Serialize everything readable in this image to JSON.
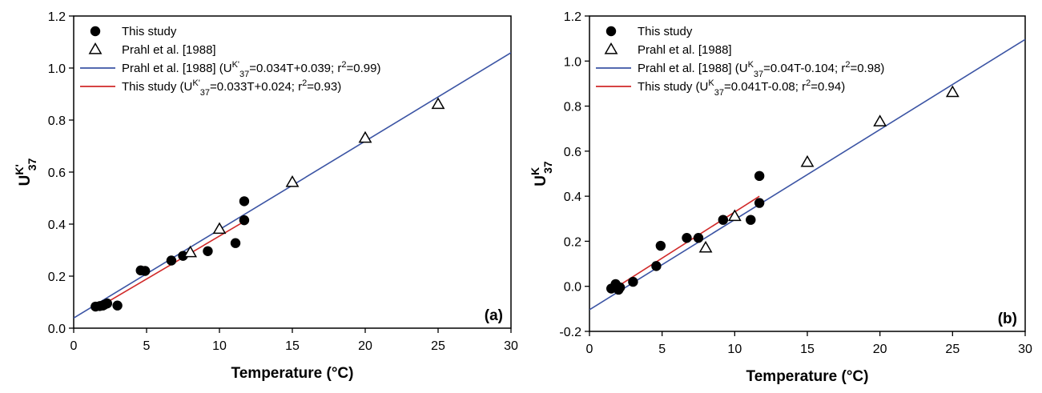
{
  "chart_data": [
    {
      "type": "scatter",
      "panel_label": "(a)",
      "xlabel": "Temperature (°C)",
      "ylabel": {
        "base": "U",
        "sup": "K'",
        "sub": "37"
      },
      "xlim": [
        0,
        30
      ],
      "ylim": [
        0.0,
        1.2
      ],
      "xticks": [
        "0",
        "5",
        "10",
        "15",
        "20",
        "25",
        "30"
      ],
      "yticks": [
        "0.0",
        "0.2",
        "0.4",
        "0.6",
        "0.8",
        "1.0",
        "1.2"
      ],
      "grid": false,
      "legend_position": "top-left",
      "series": [
        {
          "name": "This study",
          "marker": "filled-circle",
          "color": "#000000",
          "x": [
            1.5,
            1.8,
            2.0,
            2.1,
            2.3,
            3.0,
            4.6,
            4.9,
            6.7,
            7.5,
            9.2,
            11.1,
            11.7,
            11.7
          ],
          "y": [
            0.083,
            0.085,
            0.087,
            0.09,
            0.095,
            0.087,
            0.222,
            0.22,
            0.26,
            0.278,
            0.296,
            0.327,
            0.488,
            0.415
          ]
        },
        {
          "name": "Prahl et al. [1988]",
          "marker": "open-triangle",
          "color": "#000000",
          "x": [
            8,
            10,
            15,
            20,
            25
          ],
          "y": [
            0.29,
            0.38,
            0.56,
            0.73,
            0.86
          ]
        },
        {
          "name": "Prahl et al. [1988] (U<sup>K'</sup><sub>37</sub>=0.034T+0.039; r<sup>2</sup>=0.99)",
          "type": "line",
          "color": "#3b54a4",
          "slope": 0.034,
          "intercept": 0.039,
          "x_range": [
            0,
            30
          ]
        },
        {
          "name": "This study (U<sup>K'</sup><sub>37</sub>=0.033T+0.024; r<sup>2</sup>=0.93)",
          "type": "line",
          "color": "#d12a2a",
          "slope": 0.033,
          "intercept": 0.024,
          "x_range": [
            1.5,
            11.7
          ]
        }
      ]
    },
    {
      "type": "scatter",
      "panel_label": "(b)",
      "xlabel": "Temperature (°C)",
      "ylabel": {
        "base": "U",
        "sup": "K",
        "sub": "37"
      },
      "xlim": [
        0,
        30
      ],
      "ylim": [
        -0.2,
        1.2
      ],
      "xticks": [
        "0",
        "5",
        "10",
        "15",
        "20",
        "25",
        "30"
      ],
      "yticks": [
        "-0.2",
        "0.0",
        "0.2",
        "0.4",
        "0.6",
        "0.8",
        "1.0",
        "1.2"
      ],
      "grid": false,
      "legend_position": "top-left",
      "series": [
        {
          "name": "This study",
          "marker": "filled-circle",
          "color": "#000000",
          "x": [
            1.5,
            1.8,
            2.0,
            2.1,
            3.0,
            4.6,
            4.9,
            6.7,
            7.5,
            9.2,
            11.1,
            11.7,
            11.7
          ],
          "y": [
            -0.01,
            0.01,
            -0.015,
            -0.005,
            0.02,
            0.09,
            0.18,
            0.215,
            0.215,
            0.295,
            0.295,
            0.49,
            0.37
          ]
        },
        {
          "name": "Prahl et al. [1988]",
          "marker": "open-triangle",
          "color": "#000000",
          "x": [
            8,
            10,
            15,
            20,
            25
          ],
          "y": [
            0.17,
            0.31,
            0.55,
            0.73,
            0.86
          ]
        },
        {
          "name": "Prahl et al. [1988] (U<sup>K</sup><sub>37</sub>=0.04T-0.104; r<sup>2</sup>=0.98)",
          "type": "line",
          "color": "#3b54a4",
          "slope": 0.04,
          "intercept": -0.104,
          "x_range": [
            0,
            30
          ]
        },
        {
          "name": "This study (U<sup>K</sup><sub>37</sub>=0.041T-0.08; r<sup>2</sup>=0.94)",
          "type": "line",
          "color": "#d12a2a",
          "slope": 0.041,
          "intercept": -0.08,
          "x_range": [
            1.5,
            11.7
          ]
        }
      ]
    }
  ]
}
